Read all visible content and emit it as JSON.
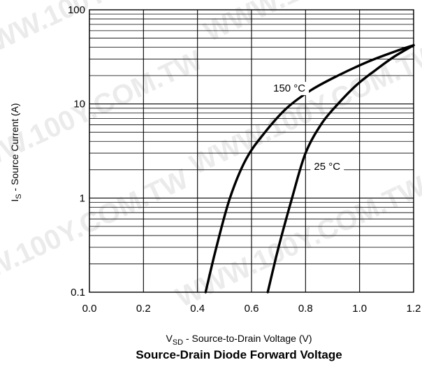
{
  "watermark": "WWW.100Y.COM.TW",
  "chart_data": {
    "type": "line",
    "title": "Source-Drain Diode Forward Voltage",
    "xlabel": {
      "main": "V",
      "sub": "SD",
      "rest": " - Source-to-Drain Voltage (V)"
    },
    "ylabel": {
      "main": "I",
      "sub": "S",
      "rest": " - Source Current (A)"
    },
    "xlim": [
      0.0,
      1.2
    ],
    "ylim": [
      0.1,
      100
    ],
    "yscale": "log",
    "grid": true,
    "x_ticks": [
      {
        "value": 0.0,
        "label": "0.0"
      },
      {
        "value": 0.2,
        "label": "0.2"
      },
      {
        "value": 0.4,
        "label": "0.4"
      },
      {
        "value": 0.6,
        "label": "0.6"
      },
      {
        "value": 0.8,
        "label": "0.8"
      },
      {
        "value": 1.0,
        "label": "1.0"
      },
      {
        "value": 1.2,
        "label": "1.2"
      }
    ],
    "y_ticks": [
      {
        "value": 0.1,
        "label": "0.1"
      },
      {
        "value": 1,
        "label": "1"
      },
      {
        "value": 10,
        "label": "10"
      },
      {
        "value": 100,
        "label": "100"
      }
    ],
    "series": [
      {
        "name": "150 °C",
        "points": [
          {
            "x": 0.43,
            "y": 0.1
          },
          {
            "x": 0.47,
            "y": 0.3
          },
          {
            "x": 0.52,
            "y": 1.0
          },
          {
            "x": 0.58,
            "y": 2.6
          },
          {
            "x": 0.65,
            "y": 5.0
          },
          {
            "x": 0.73,
            "y": 9.0
          },
          {
            "x": 0.82,
            "y": 14.0
          },
          {
            "x": 0.92,
            "y": 20.0
          },
          {
            "x": 1.03,
            "y": 28.0
          },
          {
            "x": 1.13,
            "y": 36.0
          },
          {
            "x": 1.2,
            "y": 42.0
          }
        ]
      },
      {
        "name": "25 °C",
        "points": [
          {
            "x": 0.66,
            "y": 0.1
          },
          {
            "x": 0.7,
            "y": 0.3
          },
          {
            "x": 0.75,
            "y": 1.0
          },
          {
            "x": 0.8,
            "y": 3.0
          },
          {
            "x": 0.86,
            "y": 6.2
          },
          {
            "x": 0.92,
            "y": 10.0
          },
          {
            "x": 0.99,
            "y": 16.0
          },
          {
            "x": 1.06,
            "y": 23.0
          },
          {
            "x": 1.13,
            "y": 32.0
          },
          {
            "x": 1.2,
            "y": 42.0
          }
        ]
      }
    ],
    "annotations": [
      {
        "text": "150 °C",
        "x": 0.74,
        "y": 13.5
      },
      {
        "text": "25 °C",
        "x": 0.88,
        "y": 2.0
      }
    ]
  }
}
